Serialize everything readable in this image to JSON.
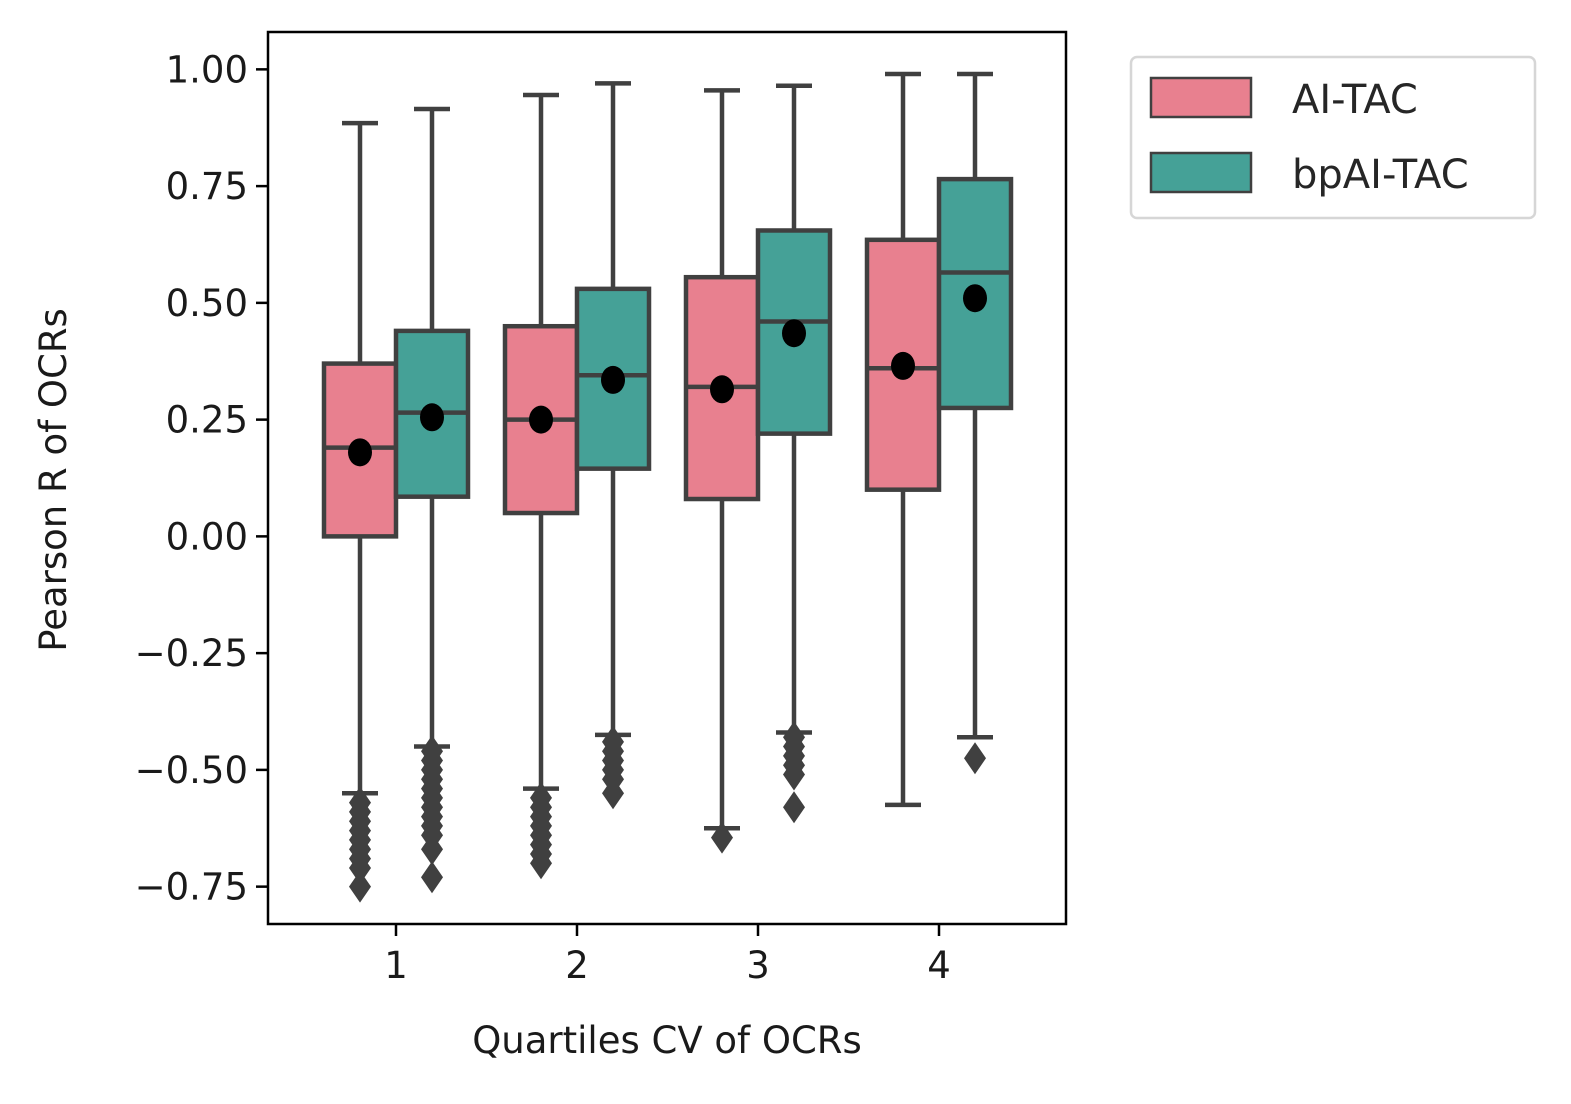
{
  "chart_data": {
    "type": "box",
    "xlabel": "Quartiles CV of OCRs",
    "ylabel": "Pearson R of OCRs",
    "categories": [
      "1",
      "2",
      "3",
      "4"
    ],
    "ylim": [
      -0.83,
      1.08
    ],
    "yticks": [
      -0.75,
      -0.5,
      -0.25,
      0.0,
      0.25,
      0.5,
      0.75,
      1.0
    ],
    "ytick_labels": [
      "−0.75",
      "−0.50",
      "−0.25",
      "0.00",
      "0.25",
      "0.50",
      "0.75",
      "1.00"
    ],
    "grid": false,
    "legend_position": "outside-top-right",
    "series": [
      {
        "name": "AI-TAC",
        "color": "#e8808f",
        "boxes": [
          {
            "category": "1",
            "whisker_low": -0.55,
            "q1": 0.0,
            "median": 0.19,
            "q3": 0.37,
            "whisker_high": 0.885,
            "mean": 0.18,
            "outliers": [
              -0.57,
              -0.59,
              -0.61,
              -0.63,
              -0.65,
              -0.67,
              -0.69,
              -0.71,
              -0.75
            ]
          },
          {
            "category": "2",
            "whisker_low": -0.54,
            "q1": 0.05,
            "median": 0.25,
            "q3": 0.45,
            "whisker_high": 0.945,
            "mean": 0.25,
            "outliers": [
              -0.56,
              -0.58,
              -0.6,
              -0.62,
              -0.64,
              -0.66,
              -0.68,
              -0.7
            ]
          },
          {
            "category": "3",
            "whisker_low": -0.625,
            "q1": 0.08,
            "median": 0.32,
            "q3": 0.555,
            "whisker_high": 0.955,
            "mean": 0.315,
            "outliers": [
              -0.645
            ]
          },
          {
            "category": "4",
            "whisker_low": -0.575,
            "q1": 0.1,
            "median": 0.36,
            "q3": 0.635,
            "whisker_high": 0.99,
            "mean": 0.365,
            "outliers": []
          }
        ]
      },
      {
        "name": "bpAI-TAC",
        "color": "#45a197",
        "boxes": [
          {
            "category": "1",
            "whisker_low": -0.45,
            "q1": 0.085,
            "median": 0.265,
            "q3": 0.44,
            "whisker_high": 0.915,
            "mean": 0.255,
            "outliers": [
              -0.46,
              -0.48,
              -0.5,
              -0.52,
              -0.54,
              -0.56,
              -0.58,
              -0.6,
              -0.62,
              -0.64,
              -0.67,
              -0.73
            ]
          },
          {
            "category": "2",
            "whisker_low": -0.425,
            "q1": 0.145,
            "median": 0.345,
            "q3": 0.53,
            "whisker_high": 0.97,
            "mean": 0.335,
            "outliers": [
              -0.44,
              -0.46,
              -0.48,
              -0.5,
              -0.52,
              -0.55
            ]
          },
          {
            "category": "3",
            "whisker_low": -0.42,
            "q1": 0.22,
            "median": 0.46,
            "q3": 0.655,
            "whisker_high": 0.965,
            "mean": 0.435,
            "outliers": [
              -0.43,
              -0.45,
              -0.47,
              -0.49,
              -0.51,
              -0.58
            ]
          },
          {
            "category": "4",
            "whisker_low": -0.43,
            "q1": 0.275,
            "median": 0.565,
            "q3": 0.765,
            "whisker_high": 0.99,
            "mean": 0.51,
            "outliers": [
              -0.475
            ]
          }
        ]
      }
    ]
  }
}
